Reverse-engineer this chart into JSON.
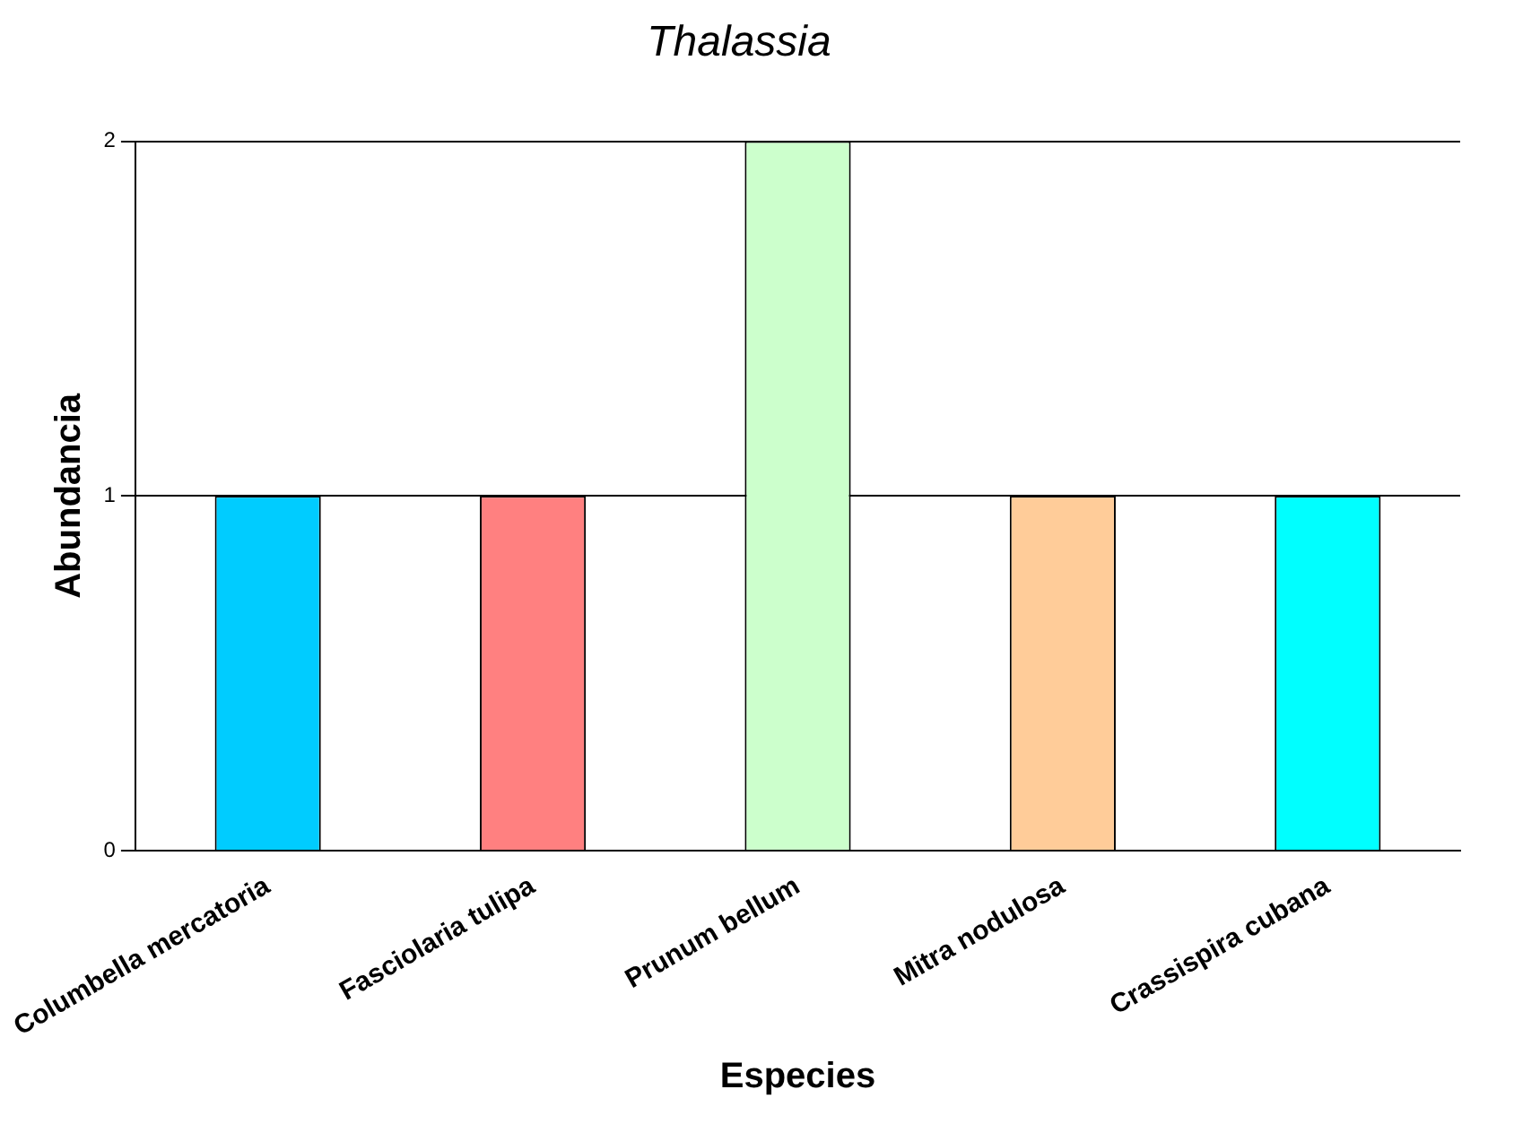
{
  "chart_data": {
    "type": "bar",
    "title": "Thalassia",
    "xlabel": "Especies",
    "ylabel": "Abundancia",
    "categories": [
      "Columbella mercatoria",
      "Fasciolaria tulipa",
      "Prunum bellum",
      "Mitra nodulosa",
      "Crassispira cubana"
    ],
    "values": [
      1,
      1,
      2,
      1,
      1
    ],
    "colors": [
      "#00ccff",
      "#ff8080",
      "#ccffcc",
      "#ffcc99",
      "#00ffff"
    ],
    "ylim": [
      0,
      2
    ],
    "yticks": [
      0,
      1,
      2
    ],
    "grid": "y"
  }
}
